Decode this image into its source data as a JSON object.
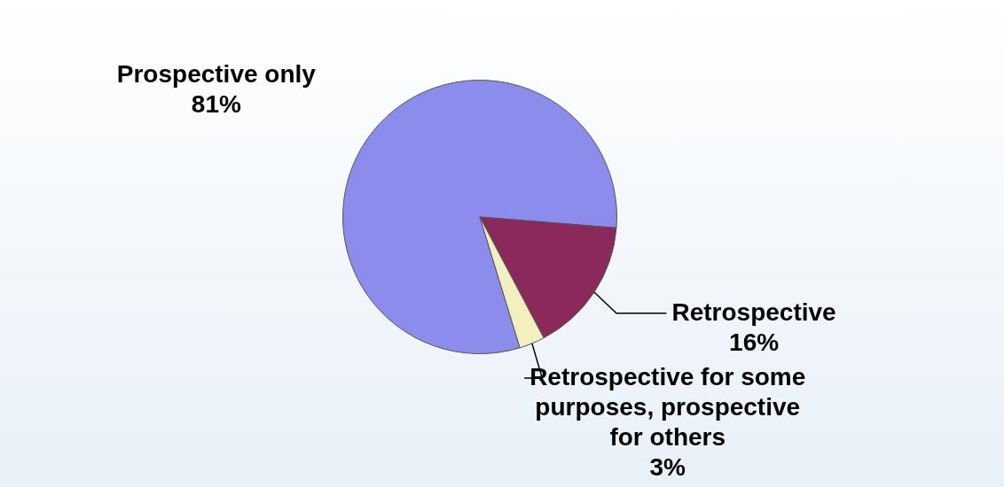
{
  "chart_data": {
    "type": "pie",
    "categories": [
      "Prospective only",
      "Retrospective",
      "Retrospective for some purposes, prospective for others"
    ],
    "values": [
      81,
      16,
      3
    ],
    "colors": [
      "#8b8cec",
      "#8b2a5a",
      "#f2f0c0"
    ],
    "value_labels": [
      "81%",
      "16%",
      "3%"
    ],
    "legend": false
  }
}
